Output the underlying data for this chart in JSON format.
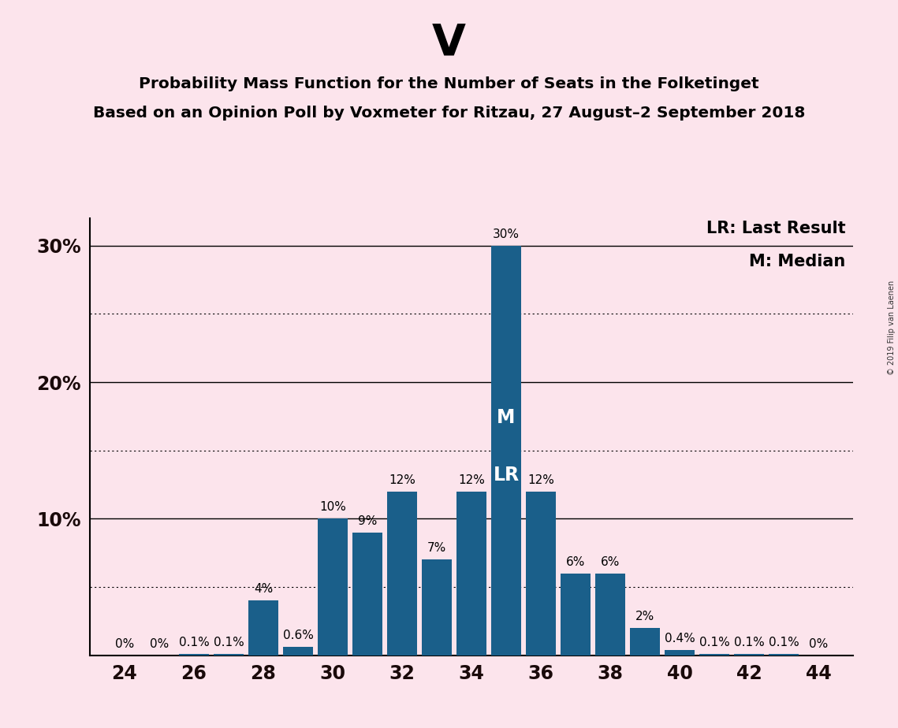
{
  "title_big": "V",
  "title_line1": "Probability Mass Function for the Number of Seats in the Folketinget",
  "title_line2": "Based on an Opinion Poll by Voxmeter for Ritzau, 27 August–2 September 2018",
  "background_color": "#fce4ec",
  "bar_color": "#1a5f8a",
  "seats": [
    24,
    25,
    26,
    27,
    28,
    29,
    30,
    31,
    32,
    33,
    34,
    35,
    36,
    37,
    38,
    39,
    40,
    41,
    42,
    43,
    44
  ],
  "probs": [
    0.0,
    0.0,
    0.1,
    0.1,
    4.0,
    0.6,
    10.0,
    9.0,
    12.0,
    7.0,
    12.0,
    30.0,
    12.0,
    6.0,
    6.0,
    2.0,
    0.4,
    0.1,
    0.1,
    0.1,
    0.0
  ],
  "labels": [
    "0%",
    "0%",
    "0.1%",
    "0.1%",
    "4%",
    "0.6%",
    "10%",
    "9%",
    "12%",
    "7%",
    "12%",
    "30%",
    "12%",
    "6%",
    "6%",
    "2%",
    "0.4%",
    "0.1%",
    "0.1%",
    "0.1%",
    "0%"
  ],
  "median_seat": 35,
  "lr_seat": 35,
  "legend_lr": "LR: Last Result",
  "legend_m": "M: Median",
  "copyright": "© 2019 Filip van Laenen",
  "dotted_yticks": [
    5,
    15,
    25
  ],
  "solid_yticks": [
    10,
    20,
    30
  ],
  "xlabel_ticks": [
    24,
    26,
    28,
    30,
    32,
    34,
    36,
    38,
    40,
    42,
    44
  ],
  "ylim_max": 32
}
